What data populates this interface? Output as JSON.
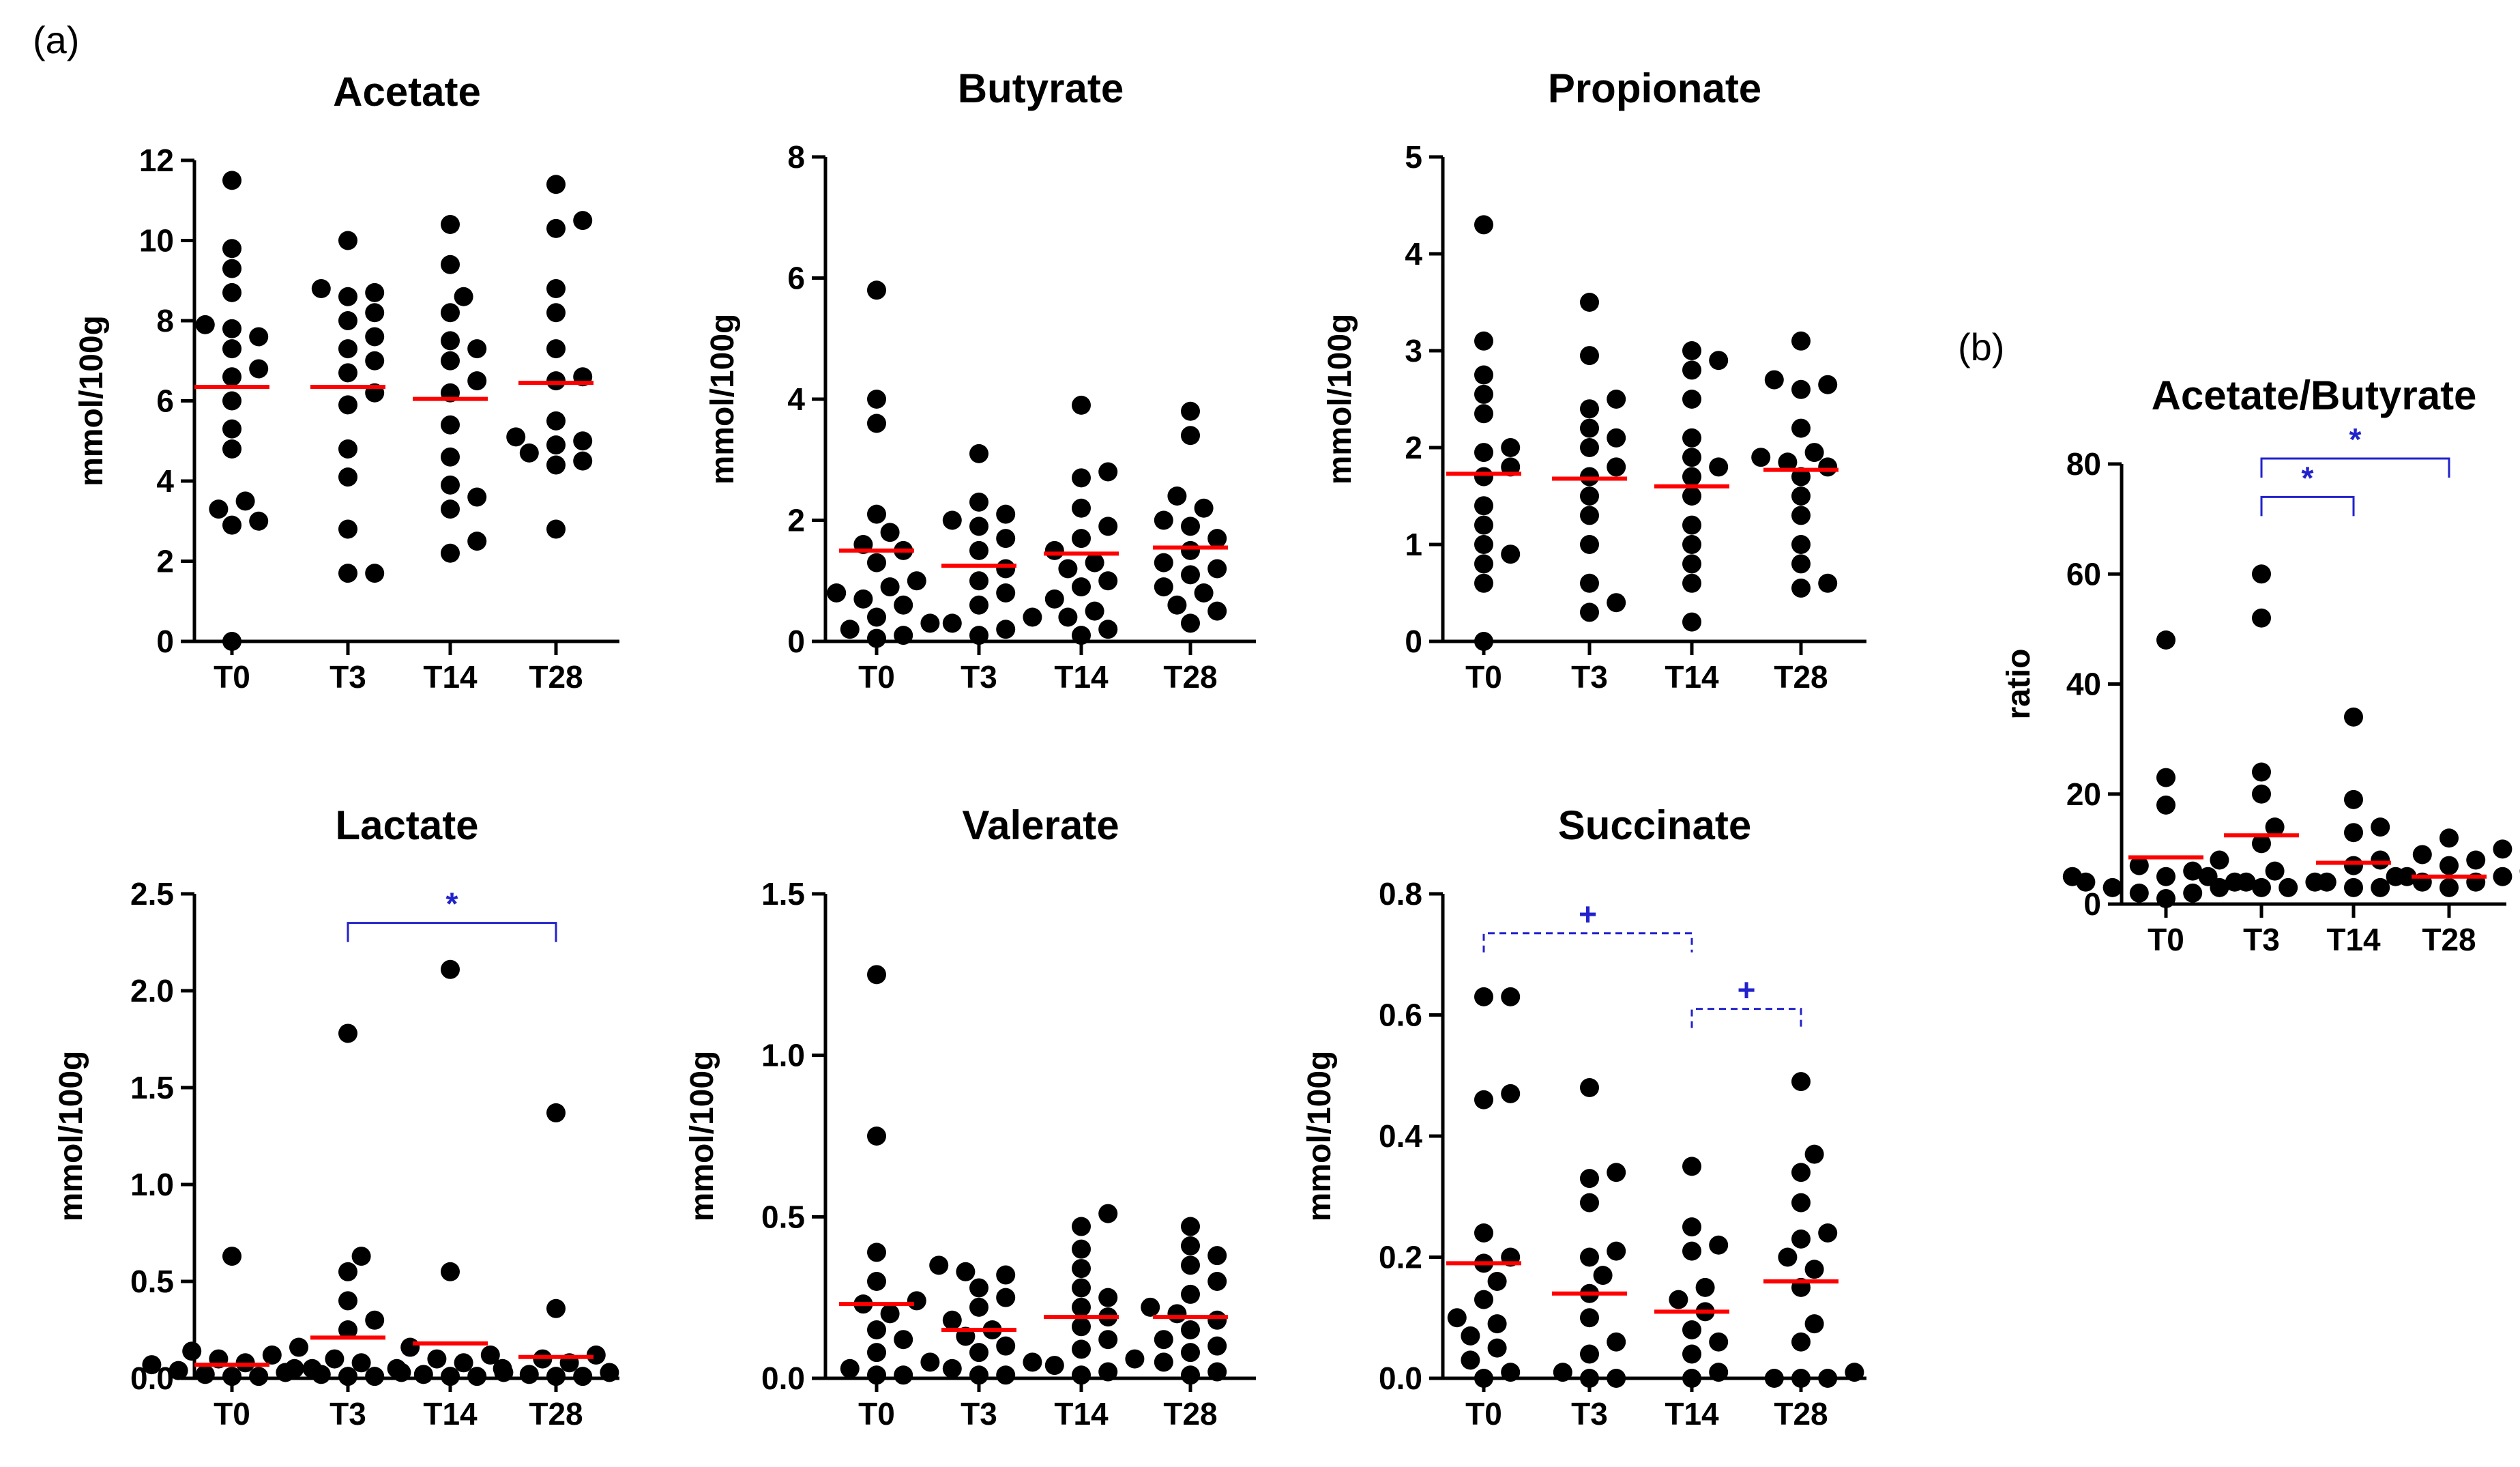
{
  "panels": {
    "a": "(a)",
    "b": "(b)"
  },
  "colors": {
    "point": "#000000",
    "mean": "#ff0000",
    "annotation": "#2222cc"
  },
  "chart_data": [
    {
      "type": "scatter",
      "title": "Acetate",
      "ylabel": "mmol/100g",
      "categories": [
        "T0",
        "T3",
        "T14",
        "T28"
      ],
      "ylim": [
        0,
        12
      ],
      "yticks": [
        "0",
        "2",
        "4",
        "6",
        "8",
        "10",
        "12"
      ],
      "series": [
        {
          "category": "T0",
          "values": [
            11.5,
            9.8,
            9.3,
            8.7,
            7.9,
            7.8,
            7.6,
            7.3,
            6.8,
            6.6,
            6.0,
            5.3,
            4.8,
            3.5,
            3.3,
            3.0,
            2.9,
            0.0
          ],
          "mean": 6.35
        },
        {
          "category": "T3",
          "values": [
            10.0,
            8.8,
            8.7,
            8.6,
            8.2,
            8.0,
            7.6,
            7.3,
            7.0,
            6.7,
            6.2,
            5.9,
            4.8,
            4.1,
            2.8,
            1.7,
            1.7
          ],
          "mean": 6.35
        },
        {
          "category": "T14",
          "values": [
            10.4,
            9.4,
            8.6,
            8.2,
            7.5,
            7.3,
            7.0,
            6.5,
            6.2,
            5.4,
            4.6,
            3.9,
            3.6,
            3.3,
            2.5,
            2.2
          ],
          "mean": 6.05
        },
        {
          "category": "T28",
          "values": [
            11.4,
            10.5,
            10.3,
            8.8,
            8.2,
            7.3,
            6.6,
            6.5,
            5.5,
            5.1,
            5.0,
            4.9,
            4.7,
            4.5,
            4.4,
            2.8
          ],
          "mean": 6.45
        }
      ]
    },
    {
      "type": "scatter",
      "title": "Butyrate",
      "ylabel": "mmol/100g",
      "categories": [
        "T0",
        "T3",
        "T14",
        "T28"
      ],
      "ylim": [
        0,
        8
      ],
      "yticks": [
        "0",
        "2",
        "4",
        "6",
        "8"
      ],
      "series": [
        {
          "category": "T0",
          "values": [
            5.8,
            4.0,
            3.6,
            2.1,
            1.8,
            1.6,
            1.5,
            1.3,
            1.0,
            0.9,
            0.8,
            0.7,
            0.6,
            0.4,
            0.3,
            0.2,
            0.1,
            0.05
          ],
          "mean": 1.5
        },
        {
          "category": "T3",
          "values": [
            3.1,
            2.3,
            2.1,
            2.0,
            1.9,
            1.7,
            1.5,
            1.2,
            1.0,
            0.8,
            0.6,
            0.4,
            0.3,
            0.2,
            0.1
          ],
          "mean": 1.25
        },
        {
          "category": "T14",
          "values": [
            3.9,
            2.8,
            2.7,
            2.2,
            1.9,
            1.7,
            1.5,
            1.3,
            1.2,
            1.0,
            0.9,
            0.7,
            0.5,
            0.4,
            0.2,
            0.1
          ],
          "mean": 1.45
        },
        {
          "category": "T28",
          "values": [
            3.8,
            3.4,
            2.4,
            2.2,
            2.0,
            1.9,
            1.7,
            1.5,
            1.3,
            1.2,
            1.1,
            0.9,
            0.8,
            0.6,
            0.5,
            0.3
          ],
          "mean": 1.55
        }
      ]
    },
    {
      "type": "scatter",
      "title": "Propionate",
      "ylabel": "mmol/100g",
      "categories": [
        "T0",
        "T3",
        "T14",
        "T28"
      ],
      "ylim": [
        0,
        5
      ],
      "yticks": [
        "0",
        "1",
        "2",
        "3",
        "4",
        "5"
      ],
      "series": [
        {
          "category": "T0",
          "values": [
            4.3,
            3.1,
            2.75,
            2.55,
            2.35,
            2.0,
            1.95,
            1.8,
            1.7,
            1.4,
            1.2,
            1.0,
            0.9,
            0.8,
            0.6,
            0.0
          ],
          "mean": 1.73
        },
        {
          "category": "T3",
          "values": [
            3.5,
            2.95,
            2.5,
            2.4,
            2.2,
            2.1,
            2.0,
            1.8,
            1.7,
            1.5,
            1.3,
            1.0,
            0.6,
            0.4,
            0.3
          ],
          "mean": 1.68
        },
        {
          "category": "T14",
          "values": [
            3.0,
            2.9,
            2.8,
            2.5,
            2.1,
            1.9,
            1.8,
            1.7,
            1.5,
            1.2,
            1.0,
            0.8,
            0.6,
            0.2
          ],
          "mean": 1.6
        },
        {
          "category": "T28",
          "values": [
            3.1,
            2.7,
            2.65,
            2.6,
            2.2,
            1.95,
            1.9,
            1.85,
            1.8,
            1.7,
            1.5,
            1.3,
            1.0,
            0.8,
            0.6,
            0.55
          ],
          "mean": 1.77
        }
      ]
    },
    {
      "type": "scatter",
      "title": "Lactate",
      "ylabel": "mmol/100g",
      "categories": [
        "T0",
        "T3",
        "T14",
        "T28"
      ],
      "ylim": [
        0,
        2.5
      ],
      "yticks": [
        "0.0",
        "0.5",
        "1.0",
        "1.5",
        "2.0",
        "2.5"
      ],
      "series": [
        {
          "category": "T0",
          "values": [
            0.63,
            0.16,
            0.14,
            0.12,
            0.1,
            0.08,
            0.07,
            0.05,
            0.04,
            0.03,
            0.02,
            0.01,
            0.01
          ],
          "mean": 0.07
        },
        {
          "category": "T3",
          "values": [
            1.78,
            0.63,
            0.55,
            0.4,
            0.3,
            0.25,
            0.1,
            0.08,
            0.05,
            0.03,
            0.02,
            0.01,
            0.01
          ],
          "mean": 0.21
        },
        {
          "category": "T14",
          "values": [
            2.11,
            0.55,
            0.16,
            0.12,
            0.1,
            0.08,
            0.05,
            0.03,
            0.02,
            0.01,
            0.01
          ],
          "mean": 0.18
        },
        {
          "category": "T28",
          "values": [
            1.37,
            0.36,
            0.12,
            0.1,
            0.08,
            0.05,
            0.03,
            0.02,
            0.01,
            0.01
          ],
          "mean": 0.11
        }
      ],
      "annotations": [
        {
          "from": "T3",
          "to": "T28",
          "y": 2.35,
          "label": "*",
          "style": "solid"
        }
      ]
    },
    {
      "type": "scatter",
      "title": "Valerate",
      "ylabel": "mmol/100g",
      "categories": [
        "T0",
        "T3",
        "T14",
        "T28"
      ],
      "ylim": [
        0,
        1.5
      ],
      "yticks": [
        "0.0",
        "0.5",
        "1.0",
        "1.5"
      ],
      "series": [
        {
          "category": "T0",
          "values": [
            1.25,
            0.75,
            0.39,
            0.3,
            0.24,
            0.23,
            0.2,
            0.15,
            0.12,
            0.08,
            0.05,
            0.03,
            0.01,
            0.01
          ],
          "mean": 0.23
        },
        {
          "category": "T3",
          "values": [
            0.35,
            0.33,
            0.32,
            0.28,
            0.25,
            0.22,
            0.18,
            0.15,
            0.13,
            0.1,
            0.08,
            0.05,
            0.03,
            0.01,
            0.01
          ],
          "mean": 0.15
        },
        {
          "category": "T14",
          "values": [
            0.51,
            0.47,
            0.4,
            0.34,
            0.28,
            0.25,
            0.22,
            0.19,
            0.16,
            0.12,
            0.09,
            0.06,
            0.04,
            0.02,
            0.01
          ],
          "mean": 0.19
        },
        {
          "category": "T28",
          "values": [
            0.47,
            0.41,
            0.38,
            0.35,
            0.3,
            0.26,
            0.22,
            0.2,
            0.18,
            0.15,
            0.12,
            0.1,
            0.08,
            0.05,
            0.02,
            0.01
          ],
          "mean": 0.19
        }
      ]
    },
    {
      "type": "scatter",
      "title": "Succinate",
      "ylabel": "mmol/100g",
      "categories": [
        "T0",
        "T3",
        "T14",
        "T28"
      ],
      "ylim": [
        0,
        0.8
      ],
      "yticks": [
        "0.0",
        "0.2",
        "0.4",
        "0.6",
        "0.8"
      ],
      "series": [
        {
          "category": "T0",
          "values": [
            0.63,
            0.63,
            0.47,
            0.46,
            0.24,
            0.2,
            0.19,
            0.16,
            0.13,
            0.1,
            0.09,
            0.07,
            0.05,
            0.03,
            0.01,
            0.0
          ],
          "mean": 0.19
        },
        {
          "category": "T3",
          "values": [
            0.48,
            0.34,
            0.33,
            0.29,
            0.21,
            0.2,
            0.17,
            0.14,
            0.1,
            0.06,
            0.04,
            0.01,
            0.0,
            0.0
          ],
          "mean": 0.14
        },
        {
          "category": "T14",
          "values": [
            0.35,
            0.25,
            0.22,
            0.21,
            0.15,
            0.13,
            0.11,
            0.08,
            0.06,
            0.04,
            0.01,
            0.0
          ],
          "mean": 0.11
        },
        {
          "category": "T28",
          "values": [
            0.49,
            0.37,
            0.34,
            0.29,
            0.24,
            0.23,
            0.2,
            0.18,
            0.15,
            0.09,
            0.06,
            0.01,
            0.0,
            0.0,
            0.0
          ],
          "mean": 0.16
        }
      ],
      "annotations": [
        {
          "from": "T0",
          "to": "T14",
          "y": 0.735,
          "label": "+",
          "style": "dashed"
        },
        {
          "from": "T14",
          "to": "T28",
          "y": 0.61,
          "label": "+",
          "style": "dashed"
        }
      ]
    },
    {
      "type": "scatter",
      "title": "Acetate/Butyrate",
      "ylabel": "ratio",
      "categories": [
        "T0",
        "T3",
        "T14",
        "T28"
      ],
      "ylim": [
        0,
        80
      ],
      "yticks": [
        "0",
        "20",
        "40",
        "60",
        "80"
      ],
      "series": [
        {
          "category": "T0",
          "values": [
            48,
            23,
            18,
            8,
            7,
            6,
            5,
            5,
            4,
            4,
            3,
            3,
            2,
            2,
            1
          ],
          "mean": 8.5
        },
        {
          "category": "T3",
          "values": [
            60,
            52,
            24,
            20,
            14,
            11,
            6,
            5,
            4,
            4,
            3,
            3
          ],
          "mean": 12.5
        },
        {
          "category": "T14",
          "values": [
            34,
            19,
            14,
            13,
            8,
            7,
            5,
            4,
            3,
            3
          ],
          "mean": 7.5
        },
        {
          "category": "T28",
          "values": [
            12,
            10,
            9,
            8,
            7,
            6,
            5,
            5,
            4,
            4,
            3
          ],
          "mean": 5
        }
      ],
      "annotations": [
        {
          "from": "T3",
          "to": "T14",
          "y": 74,
          "label": "*",
          "style": "solid"
        },
        {
          "from": "T3",
          "to": "T28",
          "y": 81,
          "label": "*",
          "style": "solid"
        }
      ]
    }
  ]
}
